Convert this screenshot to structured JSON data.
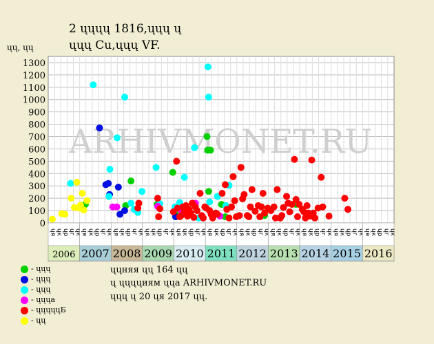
{
  "header": {
    "title_line1": "2 ųųųų 1816,ųųų ų",
    "title_line2": "ųųų Cu,ųųų VF."
  },
  "watermark": "ARHIVMONET.RU",
  "notes": [
    "ųųняя ųų 164 ųų",
    "ų ųųųųиям ųųа ARHIVMONET.RU",
    "ųųų ų 20 ųя 2017 ųų."
  ],
  "legend": [
    {
      "label": "- ųųų",
      "color": "#00d000"
    },
    {
      "label": "- ųųų",
      "color": "#0010e0"
    },
    {
      "label": "- ųųų",
      "color": "#00ffff"
    },
    {
      "label": "- ųųųа",
      "color": "#ff00ff"
    },
    {
      "label": "- ųųųųųБ",
      "color": "#ff0000"
    },
    {
      "label": "- ųų",
      "color": "#ffff00"
    }
  ],
  "chart_data": {
    "type": "scatter",
    "ylabel": "ųų, ųų",
    "ylim": [
      0,
      1350
    ],
    "yticks": [
      0,
      100,
      200,
      300,
      400,
      500,
      600,
      700,
      800,
      900,
      1000,
      1100,
      1200,
      1300
    ],
    "xlim": [
      2006.0,
      2016.0
    ],
    "years": [
      "2006",
      "2007",
      "2008",
      "2009",
      "2010",
      "2011",
      "2012",
      "2013",
      "2014",
      "2015",
      "2016"
    ],
    "year_colors": [
      "#ddeebb",
      "#a8cfd8",
      "#c8b898",
      "#a8d8b0",
      "#d8ecf2",
      "#7fe0c0",
      "#c0d4e0",
      "#b8e0b0",
      "#b8d4e4",
      "#a8d0e4",
      "#ece8c4"
    ],
    "quarter_labels": [
      "ųя",
      "ųк",
      "ųр",
      "ųг",
      "ųк"
    ],
    "grid": true,
    "series": [
      {
        "color": "#00d000",
        "points": [
          [
            2007.05,
            150
          ],
          [
            2008.5,
            340
          ],
          [
            2009.33,
            150
          ],
          [
            2009.83,
            410
          ],
          [
            2010.92,
            700
          ],
          [
            2010.94,
            590
          ],
          [
            2010.97,
            255
          ],
          [
            2011.03,
            590
          ],
          [
            2011.38,
            150
          ],
          [
            2011.5,
            50
          ],
          [
            2012.75,
            60
          ],
          [
            2013.75,
            150
          ],
          [
            2008.33,
            140
          ],
          [
            2009.9,
            80
          ]
        ]
      },
      {
        "color": "#0010e0",
        "points": [
          [
            2007.5,
            770
          ],
          [
            2007.7,
            310
          ],
          [
            2007.78,
            320
          ],
          [
            2007.82,
            230
          ],
          [
            2008.1,
            290
          ],
          [
            2008.15,
            70
          ],
          [
            2008.3,
            100
          ],
          [
            2009.92,
            50
          ],
          [
            2010.05,
            120
          ]
        ]
      },
      {
        "color": "#00ffff",
        "points": [
          [
            2006.58,
            320
          ],
          [
            2007.3,
            1120
          ],
          [
            2007.8,
            215
          ],
          [
            2007.83,
            435
          ],
          [
            2008.06,
            690
          ],
          [
            2008.3,
            1020
          ],
          [
            2008.5,
            160
          ],
          [
            2008.6,
            110
          ],
          [
            2008.72,
            85
          ],
          [
            2008.85,
            255
          ],
          [
            2009.3,
            450
          ],
          [
            2009.42,
            155
          ],
          [
            2009.9,
            130
          ],
          [
            2010.05,
            165
          ],
          [
            2010.2,
            370
          ],
          [
            2010.95,
            1265
          ],
          [
            2010.97,
            1020
          ],
          [
            2010.52,
            610
          ],
          [
            2011.25,
            215
          ],
          [
            2011.62,
            305
          ],
          [
            2011.52,
            140
          ],
          [
            2011.0,
            170
          ],
          [
            2010.65,
            40
          ]
        ]
      },
      {
        "color": "#ff00ff",
        "points": [
          [
            2007.92,
            130
          ],
          [
            2008.05,
            130
          ],
          [
            2009.35,
            135
          ],
          [
            2010.1,
            100
          ],
          [
            2010.55,
            160
          ],
          [
            2011.33,
            55
          ]
        ]
      },
      {
        "color": "#ff0000",
        "points": [
          [
            2008.72,
            120
          ],
          [
            2008.75,
            160
          ],
          [
            2009.35,
            200
          ],
          [
            2009.38,
            50
          ],
          [
            2009.42,
            115
          ],
          [
            2009.85,
            90
          ],
          [
            2009.95,
            500
          ],
          [
            2009.98,
            120
          ],
          [
            2010.05,
            50
          ],
          [
            2010.1,
            60
          ],
          [
            2010.15,
            130
          ],
          [
            2010.2,
            90
          ],
          [
            2010.25,
            140
          ],
          [
            2010.3,
            55
          ],
          [
            2010.35,
            110
          ],
          [
            2010.4,
            80
          ],
          [
            2010.45,
            160
          ],
          [
            2010.5,
            45
          ],
          [
            2010.55,
            130
          ],
          [
            2010.6,
            100
          ],
          [
            2010.7,
            240
          ],
          [
            2010.75,
            60
          ],
          [
            2010.8,
            40
          ],
          [
            2010.85,
            130
          ],
          [
            2010.9,
            120
          ],
          [
            2011.0,
            100
          ],
          [
            2011.05,
            70
          ],
          [
            2011.1,
            40
          ],
          [
            2011.2,
            80
          ],
          [
            2011.25,
            70
          ],
          [
            2011.4,
            240
          ],
          [
            2011.5,
            310
          ],
          [
            2011.55,
            110
          ],
          [
            2011.62,
            40
          ],
          [
            2011.7,
            130
          ],
          [
            2011.75,
            375
          ],
          [
            2011.8,
            180
          ],
          [
            2011.85,
            50
          ],
          [
            2011.95,
            60
          ],
          [
            2012.05,
            195
          ],
          [
            2012.1,
            230
          ],
          [
            2012.2,
            60
          ],
          [
            2012.25,
            50
          ],
          [
            2012.35,
            270
          ],
          [
            2012.45,
            95
          ],
          [
            2012.55,
            140
          ],
          [
            2012.6,
            50
          ],
          [
            2012.65,
            130
          ],
          [
            2012.7,
            240
          ],
          [
            2012.75,
            80
          ],
          [
            2012.85,
            120
          ],
          [
            2012.95,
            100
          ],
          [
            2013.05,
            130
          ],
          [
            2013.1,
            40
          ],
          [
            2013.15,
            270
          ],
          [
            2013.25,
            40
          ],
          [
            2013.3,
            60
          ],
          [
            2013.35,
            125
          ],
          [
            2013.45,
            215
          ],
          [
            2013.5,
            160
          ],
          [
            2013.55,
            90
          ],
          [
            2013.62,
            150
          ],
          [
            2013.7,
            515
          ],
          [
            2013.75,
            190
          ],
          [
            2013.8,
            50
          ],
          [
            2013.85,
            150
          ],
          [
            2013.95,
            110
          ],
          [
            2014.0,
            90
          ],
          [
            2014.05,
            40
          ],
          [
            2014.1,
            140
          ],
          [
            2014.15,
            80
          ],
          [
            2014.2,
            55
          ],
          [
            2014.25,
            510
          ],
          [
            2014.3,
            80
          ],
          [
            2014.35,
            40
          ],
          [
            2014.45,
            120
          ],
          [
            2014.55,
            370
          ],
          [
            2014.6,
            130
          ],
          [
            2014.8,
            55
          ],
          [
            2015.3,
            200
          ],
          [
            2015.4,
            110
          ],
          [
            2012.0,
            450
          ],
          [
            2012.3,
            130
          ]
        ]
      },
      {
        "color": "#ffff00",
        "points": [
          [
            2006.0,
            30
          ],
          [
            2006.3,
            75
          ],
          [
            2006.4,
            70
          ],
          [
            2006.6,
            200
          ],
          [
            2006.7,
            125
          ],
          [
            2006.78,
            330
          ],
          [
            2006.85,
            120
          ],
          [
            2006.9,
            145
          ],
          [
            2006.95,
            240
          ],
          [
            2007.0,
            105
          ],
          [
            2007.1,
            180
          ]
        ]
      }
    ]
  }
}
